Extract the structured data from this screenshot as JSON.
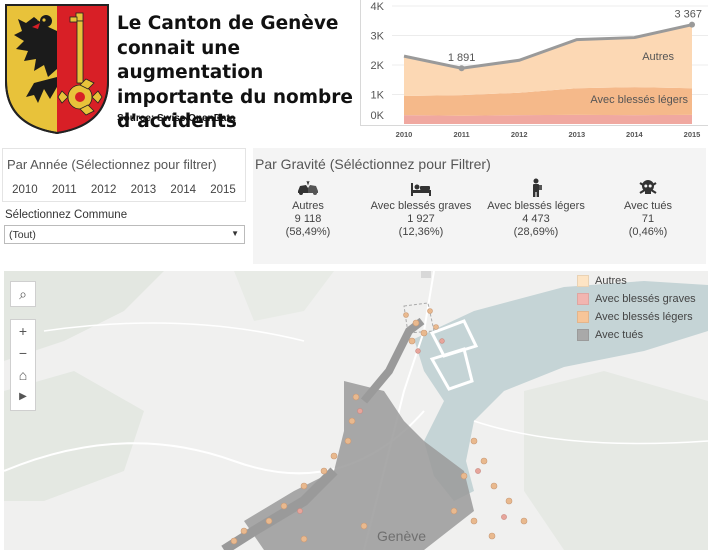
{
  "header": {
    "title": "Le Canton de Genève connait une augmentation importante du nombre d’accidents",
    "source": "Source: Swiss OpenData"
  },
  "chart_data": {
    "type": "area",
    "x": [
      "2010",
      "2011",
      "2012",
      "2013",
      "2014",
      "2015"
    ],
    "y_ticks": [
      "0K",
      "1K",
      "2K",
      "3K",
      "4K"
    ],
    "ylim": [
      0,
      4000
    ],
    "series": [
      {
        "name": "",
        "values": [
          300,
          280,
          300,
          310,
          300,
          310
        ],
        "color": "#f0a8a0"
      },
      {
        "name": "Avec blessés légers",
        "values": [
          650,
          700,
          760,
          900,
          950,
          900
        ],
        "color": "#f5b98a"
      },
      {
        "name": "Autres",
        "values": [
          1350,
          911,
          1100,
          1650,
          1680,
          2157
        ],
        "color": "#fcd8b4"
      }
    ],
    "total": {
      "values": [
        2300,
        1891,
        2160,
        2860,
        2930,
        3367
      ],
      "color": "#9a9a9a"
    },
    "labels": [
      {
        "x": "2011",
        "text": "1 891"
      },
      {
        "x": "2015",
        "text": "3 367"
      }
    ],
    "area_labels": [
      {
        "text": "Autres"
      },
      {
        "text": "Avec blessés légers"
      }
    ]
  },
  "year_filter": {
    "title": "Par Année (Sélectionnez pour filtrer)",
    "years": [
      "2010",
      "2011",
      "2012",
      "2013",
      "2014",
      "2015"
    ]
  },
  "commune": {
    "label": "Sélectionnez Commune",
    "value": "(Tout)",
    "arrow": "▼"
  },
  "gravity": {
    "title": "Par Gravité (Séléctionnez pour Filtrer)",
    "items": [
      {
        "icon": "car-crash-icon",
        "label": "Autres",
        "count": "9 118",
        "pct": "(58,49%)"
      },
      {
        "icon": "hospital-bed-icon",
        "label": "Avec blessés graves",
        "count": "1 927",
        "pct": "(12,36%)"
      },
      {
        "icon": "injured-person-icon",
        "label": "Avec blessés légers",
        "count": "4 473",
        "pct": "(28,69%)"
      },
      {
        "icon": "skull-icon",
        "label": "Avec tués",
        "count": "71",
        "pct": "(0,46%)"
      }
    ]
  },
  "map": {
    "city_label": "Genève",
    "controls": {
      "search": "⌕",
      "zoom_in": "+",
      "zoom_out": "−",
      "home": "⌂",
      "play": "▶"
    },
    "legend": [
      {
        "label": "Autres",
        "color": "#fde4c4"
      },
      {
        "label": "Avec blessés graves",
        "color": "#f2b5b0"
      },
      {
        "label": "Avec blessés légers",
        "color": "#f7c598"
      },
      {
        "label": "Avec tués",
        "color": "#a9a9a9"
      }
    ]
  }
}
